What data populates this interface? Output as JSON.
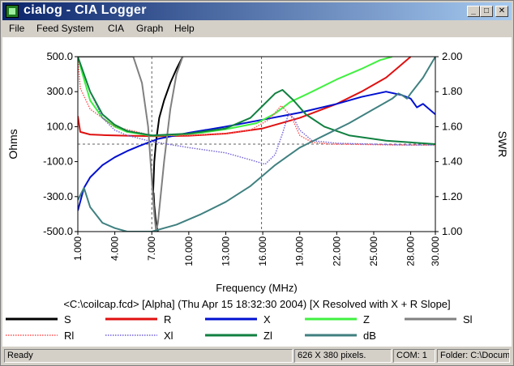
{
  "window": {
    "title": "cialog - CIA Logger",
    "min_glyph": "_",
    "max_glyph": "□",
    "close_glyph": "✕"
  },
  "menu": [
    {
      "label": "File"
    },
    {
      "label": "Feed System"
    },
    {
      "label": "CIA"
    },
    {
      "label": "Graph"
    },
    {
      "label": "Help"
    }
  ],
  "chart_data": {
    "type": "line",
    "caption": "<C:\\coilcap.fcd> [Alpha] (Thu Apr 15 18:32:30 2004) [X Resolved with X + R Slope]",
    "xlabel": "Frequency (MHz)",
    "ylabel_left": "Ohms",
    "ylabel_right": "SWR",
    "xlim": [
      1.0,
      30.0
    ],
    "ylim_left": [
      -500,
      500
    ],
    "ylim_right": [
      1.0,
      2.0
    ],
    "x_ticks": [
      "1.000",
      "4.000",
      "7.000",
      "10.000",
      "13.000",
      "16.000",
      "19.000",
      "22.000",
      "25.000",
      "28.000",
      "30.000"
    ],
    "x_tick_values": [
      1,
      4,
      7,
      10,
      13,
      16,
      19,
      22,
      25,
      28,
      30
    ],
    "y_left_ticks": [
      "500.0",
      "300.0",
      "100.0",
      "-100.0",
      "-300.0",
      "-500.0"
    ],
    "y_left_values": [
      500,
      300,
      100,
      -100,
      -300,
      -500
    ],
    "y_right_ticks": [
      "2.00",
      "1.80",
      "1.60",
      "1.40",
      "1.20",
      "1.00"
    ],
    "y_right_values": [
      2.0,
      1.8,
      1.6,
      1.4,
      1.2,
      1.0
    ],
    "markers_x": [
      7.0,
      15.9
    ],
    "marker_y": 0,
    "series": [
      {
        "name": "S",
        "color": "#000000",
        "style": "solid",
        "axis": "right",
        "x": [
          7.5,
          7.4,
          7.3,
          7.2,
          7.15,
          7.1,
          7.15,
          7.2,
          7.35,
          7.6,
          8.0,
          8.5,
          9.0,
          9.5
        ],
        "y": [
          1.0,
          1.03,
          1.08,
          1.15,
          1.22,
          1.22,
          1.3,
          1.4,
          1.52,
          1.65,
          1.75,
          1.85,
          1.93,
          2.0
        ]
      },
      {
        "name": "R",
        "color": "#e01010",
        "style": "solid",
        "axis": "left",
        "x": [
          1.0,
          1.2,
          2.0,
          3.0,
          5.0,
          7.5,
          10.0,
          13.0,
          16.0,
          19.0,
          22.0,
          24.0,
          26.0,
          27.0,
          28.0
        ],
        "y": [
          160,
          70,
          55,
          52,
          48,
          45,
          48,
          60,
          90,
          150,
          230,
          300,
          380,
          440,
          500
        ]
      },
      {
        "name": "X",
        "color": "#0010d0",
        "style": "solid",
        "axis": "left",
        "x": [
          1.0,
          1.5,
          2.0,
          3.0,
          4.0,
          5.0,
          6.0,
          7.5,
          10.0,
          13.0,
          16.0,
          19.0,
          22.0,
          24.0,
          26.0,
          27.3,
          28.0,
          28.5,
          29.0,
          30.0
        ],
        "y": [
          -380,
          -250,
          -190,
          -120,
          -75,
          -40,
          -10,
          30,
          65,
          100,
          140,
          180,
          230,
          270,
          300,
          280,
          260,
          210,
          230,
          170
        ]
      },
      {
        "name": "Z",
        "color": "#40f040",
        "style": "solid",
        "axis": "left",
        "x": [
          1.0,
          1.3,
          2.0,
          3.0,
          4.0,
          5.0,
          7.0,
          9.0,
          11.0,
          13.0,
          15.5,
          17.0,
          18.2,
          20.0,
          22.0,
          24.0,
          25.5,
          26.5
        ],
        "y": [
          500,
          420,
          250,
          150,
          100,
          70,
          48,
          52,
          65,
          85,
          120,
          175,
          240,
          300,
          370,
          430,
          480,
          500
        ]
      },
      {
        "name": "Sl",
        "color": "#808080",
        "style": "solid",
        "axis": "right",
        "x": [
          1.0,
          4.0,
          5.5,
          6.2,
          6.7,
          7.0,
          7.2,
          7.35,
          7.5,
          8.0,
          8.5,
          9.0,
          9.5
        ],
        "y": [
          2.0,
          2.0,
          2.0,
          1.85,
          1.6,
          1.3,
          1.1,
          1.0,
          1.05,
          1.4,
          1.7,
          1.9,
          2.0
        ]
      },
      {
        "name": "Rl",
        "color": "#ff5050",
        "style": "dotted",
        "axis": "left",
        "x": [
          1.0,
          1.2,
          2.0,
          4.0,
          7.0,
          10.0,
          13.0,
          15.0,
          16.5,
          17.5,
          18.3,
          19.0,
          20.0,
          21.5,
          24.0,
          27.0,
          30.0
        ],
        "y": [
          500,
          320,
          200,
          100,
          50,
          50,
          60,
          80,
          140,
          220,
          160,
          50,
          10,
          0,
          -2,
          -5,
          -5
        ]
      },
      {
        "name": "Xl",
        "color": "#7060d8",
        "style": "dotted",
        "axis": "left",
        "x": [
          1.0,
          2.0,
          3.0,
          4.0,
          5.0,
          7.0,
          10.0,
          13.0,
          15.0,
          16.2,
          17.0,
          17.6,
          18.1,
          18.5,
          19.0,
          20.0,
          22.0,
          25.0,
          28.0,
          30.0
        ],
        "y": [
          500,
          300,
          150,
          80,
          50,
          15,
          -20,
          -50,
          -90,
          -115,
          -60,
          60,
          175,
          150,
          80,
          20,
          5,
          0,
          -5,
          -5
        ]
      },
      {
        "name": "Zl",
        "color": "#108040",
        "style": "solid",
        "axis": "left",
        "x": [
          1.0,
          2.0,
          3.0,
          4.0,
          5.0,
          7.0,
          10.0,
          13.0,
          15.0,
          16.0,
          17.0,
          17.6,
          18.5,
          19.5,
          21.0,
          23.0,
          26.0,
          30.0
        ],
        "y": [
          500,
          300,
          170,
          110,
          75,
          50,
          60,
          90,
          150,
          220,
          290,
          310,
          250,
          170,
          100,
          50,
          20,
          0
        ]
      },
      {
        "name": "dB",
        "color": "#408080",
        "style": "solid",
        "axis": "right",
        "x": [
          1.0,
          1.5,
          2.0,
          3.0,
          4.0,
          5.0,
          7.0,
          9.0,
          11.0,
          13.0,
          15.0,
          16.0,
          17.0,
          18.0,
          19.0,
          21.0,
          23.0,
          25.0,
          26.5,
          27.0,
          27.3,
          27.7,
          28.0,
          29.0,
          30.0
        ],
        "y": [
          1.18,
          1.25,
          1.14,
          1.05,
          1.02,
          1.0,
          1.0,
          1.04,
          1.1,
          1.17,
          1.26,
          1.32,
          1.38,
          1.43,
          1.48,
          1.55,
          1.62,
          1.7,
          1.76,
          1.79,
          1.78,
          1.76,
          1.79,
          1.88,
          2.0
        ]
      }
    ]
  },
  "status": {
    "ready": "Ready",
    "size": "626 X 380 pixels.",
    "com": "COM: 1",
    "folder": "Folder: C:\\Documents and Settings"
  }
}
